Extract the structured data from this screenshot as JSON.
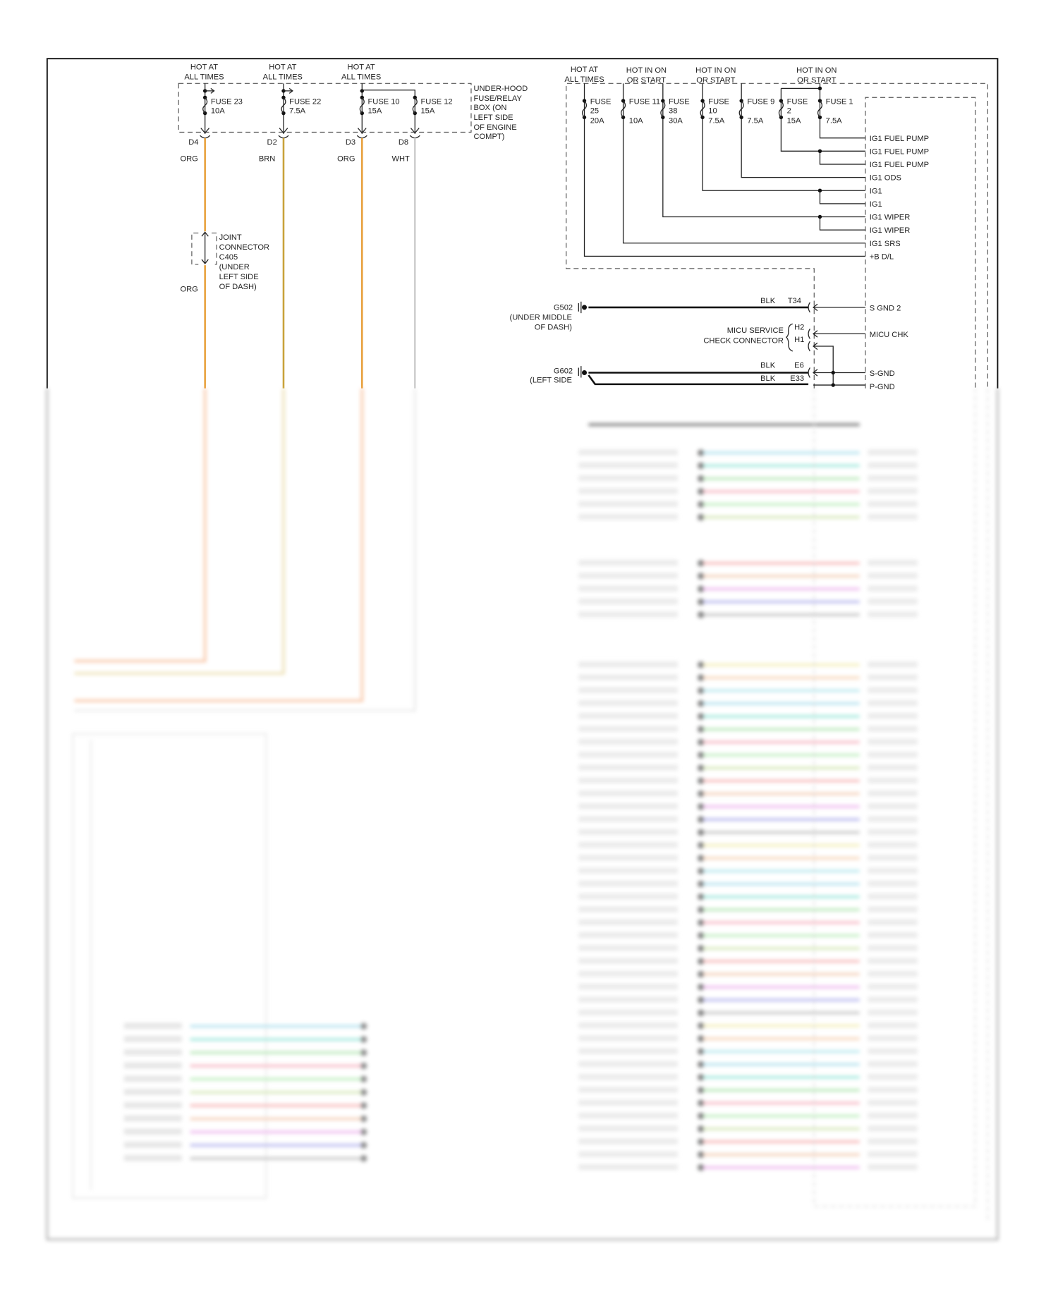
{
  "colors": {
    "org": "#e8a23e",
    "brn": "#c9a23a",
    "wht": "#cfcfcf",
    "blk": "#111111",
    "frame": "#111111"
  },
  "left": {
    "headers": [
      [
        "HOT AT",
        "ALL TIMES"
      ],
      [
        "HOT AT",
        "ALL TIMES"
      ],
      [
        "HOT AT",
        "ALL TIMES"
      ]
    ],
    "fuses": [
      {
        "name": "FUSE 23",
        "rating": "10A",
        "pin": "D4",
        "wire": "ORG"
      },
      {
        "name": "FUSE 22",
        "rating": "7.5A",
        "pin": "D2",
        "wire": "BRN"
      },
      {
        "name": "FUSE 10",
        "rating": "15A",
        "pin": "D3",
        "wire": "ORG"
      },
      {
        "name": "FUSE 12",
        "rating": "15A",
        "pin": "D8",
        "wire": "WHT"
      }
    ],
    "box_label": [
      "UNDER-HOOD",
      "FUSE/RELAY",
      "BOX (ON",
      "LEFT SIDE",
      "OF ENGINE",
      "COMPT)"
    ],
    "joint_label": [
      "JOINT",
      "CONNECTOR",
      "C405",
      "(UNDER",
      "LEFT SIDE",
      "OF DASH)"
    ],
    "joint_wire": "ORG"
  },
  "right": {
    "headers": [
      [
        "HOT AT",
        "ALL TIMES"
      ],
      [
        "HOT IN ON",
        "OR START"
      ],
      [
        "HOT IN ON",
        "OR START"
      ],
      [
        "HOT IN ON",
        "OR START"
      ]
    ],
    "fuses": [
      {
        "l1": "FUSE",
        "l2": "25",
        "l3": "20A"
      },
      {
        "l1": "FUSE 11",
        "l2": "",
        "l3": "10A"
      },
      {
        "l1": "FUSE",
        "l2": "38",
        "l3": "30A"
      },
      {
        "l1": "FUSE",
        "l2": "10",
        "l3": "7.5A"
      },
      {
        "l1": "FUSE 9",
        "l2": "",
        "l3": "7.5A"
      },
      {
        "l1": "FUSE",
        "l2": "2",
        "l3": "15A"
      },
      {
        "l1": "FUSE 1",
        "l2": "",
        "l3": "7.5A"
      }
    ],
    "outputs": [
      "IG1 FUEL PUMP",
      "IG1 FUEL PUMP",
      "IG1 FUEL PUMP",
      "IG1 ODS",
      "IG1",
      "IG1",
      "IG1 WIPER",
      "IG1 WIPER",
      "IG1 SRS",
      "+B D/L"
    ]
  },
  "grounds": {
    "g502": {
      "name": "G502",
      "loc": [
        "(UNDER MIDDLE",
        "OF DASH)"
      ],
      "wire": "BLK",
      "pin": "T34",
      "signal": "S GND 2"
    },
    "micu": {
      "label": [
        "MICU SERVICE",
        "CHECK CONNECTOR"
      ],
      "pins": [
        "H2",
        "H1"
      ],
      "signal": "MICU CHK"
    },
    "g602": {
      "name": "G602",
      "loc": [
        "(LEFT SIDE"
      ],
      "wires": [
        {
          "wire": "BLK",
          "pin": "E6",
          "signal": "S-GND"
        },
        {
          "wire": "BLK",
          "pin": "E33",
          "signal": "P-GND"
        }
      ]
    }
  },
  "blurred_wire_colors": [
    "#9ad8e8",
    "#7fe0d0",
    "#a0e0a0",
    "#f4a0b0",
    "#a8e8a8",
    "#c8e0a0",
    "#f4a0a0",
    "#f0c0a0",
    "#e8a0e8",
    "#a0a0e8",
    "#b0b0b0",
    "#f0e8a0",
    "#f4c8a0",
    "#a0e0e8"
  ]
}
